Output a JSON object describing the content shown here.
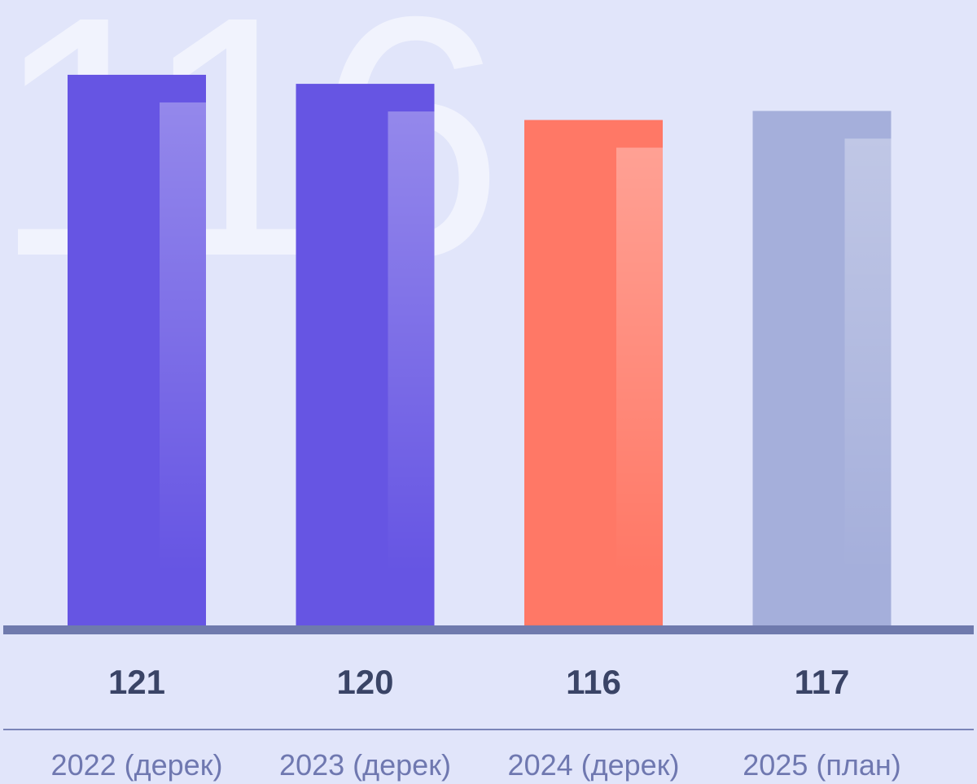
{
  "chart_data": {
    "type": "bar",
    "categories": [
      "2022 (дерек)",
      "2023 (дерек)",
      "2024 (дерек)",
      "2025 (план)"
    ],
    "values": [
      121,
      120,
      116,
      117
    ],
    "colors": [
      "#6655e3",
      "#6655e3",
      "#ff7866",
      "#a5afdb"
    ],
    "ylim": [
      60,
      125
    ],
    "highlight": 2
  }
}
